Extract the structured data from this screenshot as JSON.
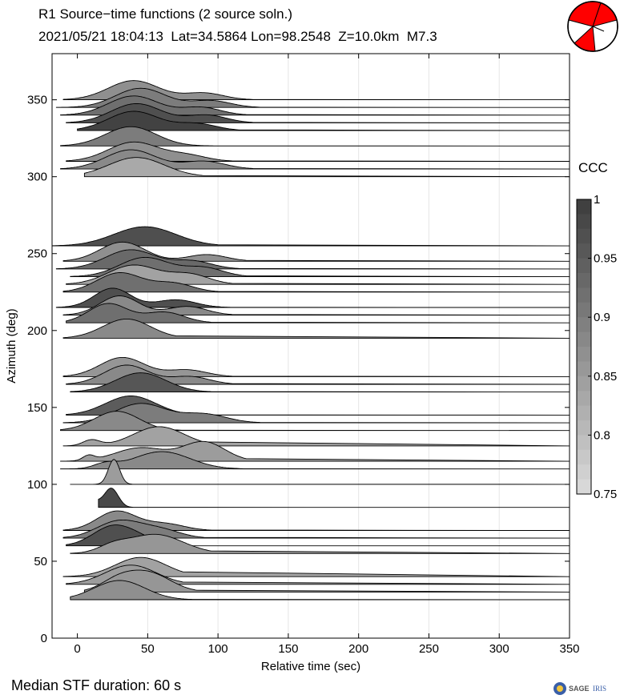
{
  "header": {
    "title_line1": "R1 Source−time functions (2 source soln.)",
    "title_line2": "2021/05/21 18:04:13  Lat=34.5864 Lon=98.2548  Z=10.0km  M7.3"
  },
  "footer": {
    "median_text": "Median STF duration: 60 s",
    "logo_text": "SAGE",
    "logo_subtext": "IRIS"
  },
  "colorbar": {
    "title": "CCC",
    "ticks": [
      "1",
      "0.95",
      "0.9",
      "0.85",
      "0.8",
      "0.75"
    ],
    "range": [
      0.75,
      1.0
    ]
  },
  "colors": {
    "beachball_fill": "#ff0000",
    "trace_line": "#000000",
    "gray_dark": "#454545",
    "gray_light": "#d9d9d9"
  },
  "chart_data": {
    "type": "area",
    "xlabel": "Relative time (sec)",
    "ylabel": "Azimuth (deg)",
    "xlim": [
      -18,
      350
    ],
    "ylim": [
      0,
      380
    ],
    "xticks": [
      "0",
      "50",
      "100",
      "150",
      "200",
      "250",
      "300",
      "350"
    ],
    "yticks": [
      "0",
      "50",
      "100",
      "150",
      "200",
      "250",
      "300",
      "350"
    ],
    "grid": "x",
    "traces": [
      {
        "az": 25,
        "start": -5,
        "end": 82,
        "ccc": 0.87,
        "p": [
          [
            30,
            1.0,
            18
          ]
        ]
      },
      {
        "az": 30,
        "start": 5,
        "end": 85,
        "ccc": 0.86,
        "p": [
          [
            50,
            1.0,
            16
          ],
          [
            28,
            0.5,
            12
          ]
        ]
      },
      {
        "az": 35,
        "start": -8,
        "end": 75,
        "ccc": 0.85,
        "p": [
          [
            38,
            1.0,
            18
          ]
        ]
      },
      {
        "az": 40,
        "start": -10,
        "end": 75,
        "ccc": 0.84,
        "p": [
          [
            45,
            1.0,
            18
          ]
        ]
      },
      {
        "az": 55,
        "start": -5,
        "end": 95,
        "ccc": 0.86,
        "p": [
          [
            55,
            1.0,
            20
          ],
          [
            25,
            0.3,
            10
          ]
        ]
      },
      {
        "az": 60,
        "start": -8,
        "end": 85,
        "ccc": 0.97,
        "p": [
          [
            25,
            1.0,
            14
          ],
          [
            45,
            0.3,
            12
          ]
        ]
      },
      {
        "az": 65,
        "start": -10,
        "end": 90,
        "ccc": 0.9,
        "p": [
          [
            30,
            0.9,
            16
          ],
          [
            60,
            0.4,
            14
          ]
        ]
      },
      {
        "az": 70,
        "start": -10,
        "end": 95,
        "ccc": 0.88,
        "p": [
          [
            28,
            1.0,
            14
          ],
          [
            62,
            0.35,
            14
          ]
        ]
      },
      {
        "az": 85,
        "start": 15,
        "end": 40,
        "ccc": 0.98,
        "p": [
          [
            24,
            1.0,
            5
          ],
          [
            12,
            0.3,
            4
          ]
        ]
      },
      {
        "az": 100,
        "start": -5,
        "end": 40,
        "ccc": 0.85,
        "p": [
          [
            26,
            1.3,
            4
          ]
        ]
      },
      {
        "az": 110,
        "start": -12,
        "end": 120,
        "ccc": 0.88,
        "p": [
          [
            60,
            0.9,
            20
          ],
          [
            20,
            0.25,
            8
          ]
        ]
      },
      {
        "az": 115,
        "start": -12,
        "end": 120,
        "ccc": 0.85,
        "p": [
          [
            90,
            1.0,
            15
          ],
          [
            45,
            0.7,
            18
          ],
          [
            8,
            0.25,
            4
          ]
        ]
      },
      {
        "az": 125,
        "start": -10,
        "end": 90,
        "ccc": 0.84,
        "p": [
          [
            58,
            1.0,
            18
          ],
          [
            10,
            0.3,
            6
          ]
        ]
      },
      {
        "az": 135,
        "start": -12,
        "end": 75,
        "ccc": 0.88,
        "p": [
          [
            28,
            1.0,
            16
          ]
        ]
      },
      {
        "az": 140,
        "start": -10,
        "end": 130,
        "ccc": 0.9,
        "p": [
          [
            45,
            1.0,
            18
          ],
          [
            90,
            0.45,
            16
          ]
        ]
      },
      {
        "az": 145,
        "start": -8,
        "end": 90,
        "ccc": 0.95,
        "p": [
          [
            38,
            1.0,
            18
          ]
        ]
      },
      {
        "az": 160,
        "start": -5,
        "end": 95,
        "ccc": 0.96,
        "p": [
          [
            45,
            1.0,
            18
          ]
        ]
      },
      {
        "az": 165,
        "start": -8,
        "end": 110,
        "ccc": 0.88,
        "p": [
          [
            35,
            1.0,
            16
          ],
          [
            80,
            0.4,
            14
          ]
        ]
      },
      {
        "az": 170,
        "start": -10,
        "end": 110,
        "ccc": 0.86,
        "p": [
          [
            32,
            1.0,
            16
          ],
          [
            78,
            0.35,
            14
          ]
        ]
      },
      {
        "az": 195,
        "start": -10,
        "end": 70,
        "ccc": 0.88,
        "p": [
          [
            35,
            1.0,
            17
          ]
        ]
      },
      {
        "az": 205,
        "start": -8,
        "end": 95,
        "ccc": 0.92,
        "p": [
          [
            22,
            1.0,
            14
          ],
          [
            62,
            0.55,
            14
          ]
        ]
      },
      {
        "az": 210,
        "start": -10,
        "end": 110,
        "ccc": 0.88,
        "p": [
          [
            30,
            1.0,
            14
          ],
          [
            78,
            0.45,
            14
          ]
        ]
      },
      {
        "az": 215,
        "start": -15,
        "end": 110,
        "ccc": 0.97,
        "p": [
          [
            25,
            1.0,
            13
          ],
          [
            70,
            0.4,
            14
          ]
        ]
      },
      {
        "az": 225,
        "start": -10,
        "end": 100,
        "ccc": 0.92,
        "p": [
          [
            30,
            1.0,
            16
          ],
          [
            68,
            0.45,
            14
          ]
        ]
      },
      {
        "az": 230,
        "start": -8,
        "end": 110,
        "ccc": 0.84,
        "p": [
          [
            40,
            1.0,
            18
          ],
          [
            80,
            0.5,
            14
          ]
        ]
      },
      {
        "az": 235,
        "start": -5,
        "end": 120,
        "ccc": 0.92,
        "p": [
          [
            48,
            1.0,
            18
          ],
          [
            90,
            0.45,
            14
          ]
        ]
      },
      {
        "az": 240,
        "start": -15,
        "end": 115,
        "ccc": 0.93,
        "p": [
          [
            38,
            1.0,
            18
          ],
          [
            82,
            0.4,
            14
          ]
        ]
      },
      {
        "az": 245,
        "start": -10,
        "end": 120,
        "ccc": 0.87,
        "p": [
          [
            32,
            1.0,
            16
          ],
          [
            92,
            0.35,
            14
          ]
        ]
      },
      {
        "az": 255,
        "start": -18,
        "end": 100,
        "ccc": 0.97,
        "p": [
          [
            48,
            1.0,
            22
          ]
        ]
      },
      {
        "az": 300,
        "start": 5,
        "end": 90,
        "ccc": 0.83,
        "p": [
          [
            42,
            1.0,
            20
          ]
        ]
      },
      {
        "az": 305,
        "start": -12,
        "end": 125,
        "ccc": 0.88,
        "p": [
          [
            38,
            1.0,
            18
          ],
          [
            90,
            0.4,
            15
          ]
        ]
      },
      {
        "az": 310,
        "start": -8,
        "end": 110,
        "ccc": 0.87,
        "p": [
          [
            40,
            1.0,
            18
          ],
          [
            78,
            0.3,
            14
          ]
        ]
      },
      {
        "az": 320,
        "start": -12,
        "end": 100,
        "ccc": 0.9,
        "p": [
          [
            38,
            1.0,
            18
          ]
        ]
      },
      {
        "az": 330,
        "start": 0,
        "end": 115,
        "ccc": 0.99,
        "p": [
          [
            40,
            1.0,
            18
          ],
          [
            85,
            0.35,
            14
          ]
        ]
      },
      {
        "az": 335,
        "start": -8,
        "end": 125,
        "ccc": 0.97,
        "p": [
          [
            42,
            1.0,
            18
          ],
          [
            92,
            0.4,
            14
          ]
        ]
      },
      {
        "az": 340,
        "start": -12,
        "end": 120,
        "ccc": 0.92,
        "p": [
          [
            40,
            1.0,
            18
          ],
          [
            88,
            0.4,
            14
          ]
        ]
      },
      {
        "az": 345,
        "start": -15,
        "end": 130,
        "ccc": 0.9,
        "p": [
          [
            45,
            1.0,
            18
          ],
          [
            95,
            0.35,
            14
          ]
        ]
      },
      {
        "az": 350,
        "start": -10,
        "end": 125,
        "ccc": 0.87,
        "p": [
          [
            40,
            1.0,
            18
          ],
          [
            90,
            0.35,
            14
          ]
        ]
      }
    ]
  }
}
